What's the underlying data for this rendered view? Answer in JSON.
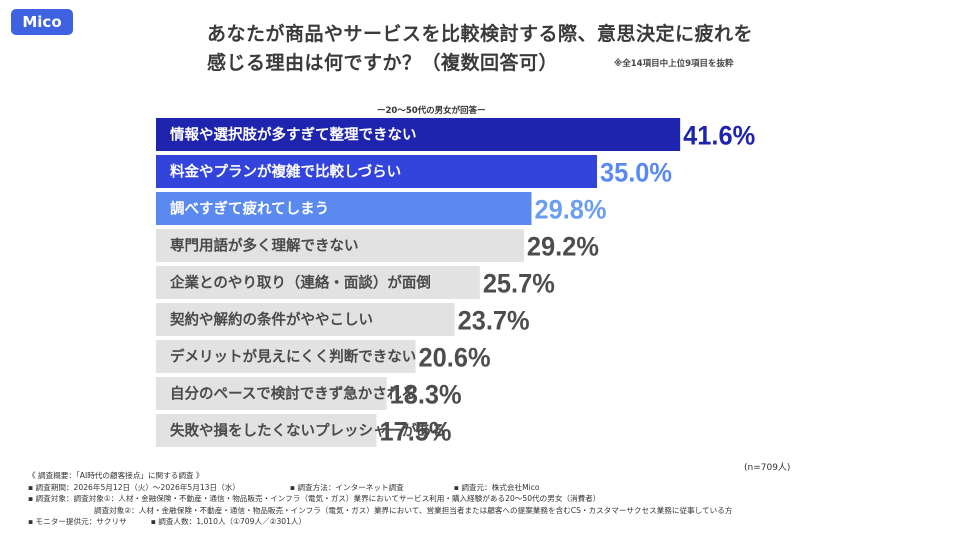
{
  "logo": "Mico",
  "header": {
    "title_line1": "あなたが商品やサービスを比較検討する際、意思決定に疲れを",
    "title_line2": "感じる理由は何ですか？（複数回答可）",
    "note": "※全14項目中上位9項目を抜粋",
    "sublabel": "ー20〜50代の男女が回答ー"
  },
  "chart_data": {
    "type": "bar",
    "orientation": "horizontal",
    "categories": [
      "情報や選択肢が多すぎて整理できない",
      "料金やプランが複雑で比較しづらい",
      "調べすぎて疲れてしまう",
      "専門用語が多く理解できない",
      "企業とのやり取り（連絡・面談）が面倒",
      "契約や解約の条件がややこしい",
      "デメリットが見えにくく判断できない",
      "自分のペースで検討できず急かされる",
      "失敗や損をしたくないプレッシャーがある"
    ],
    "values": [
      41.6,
      35.0,
      29.8,
      29.2,
      25.7,
      23.7,
      20.6,
      18.3,
      17.5
    ],
    "value_labels": [
      "41.6%",
      "35.0%",
      "29.8%",
      "29.2%",
      "25.7%",
      "23.7%",
      "20.6%",
      "18.3%",
      "17.5%"
    ],
    "colors": {
      "rank1": "#1e24ad",
      "rank2": "#3344dd",
      "rank3": "#5a8af0",
      "other": "#e2e2e2",
      "label_rank1": "#1e24ad",
      "label_rank2": "#5a8af0",
      "label_rank3": "#6b9ef2",
      "label_other": "#4d4d4d"
    },
    "n_label": "(n=709人)"
  },
  "footer": {
    "summary": "《 調査概要：「AI時代の顧客接点」に関する調査 》",
    "period": "▪ 調査期間：2026年5月12日（火）〜2026年5月13日（水）",
    "method": "▪ 調査方法：インターネット調査",
    "organizer": "▪ 調査元：株式会社Mico",
    "target1": "▪ 調査対象：調査対象①：人材・金融保険・不動産・通信・物品販売・インフラ（電気・ガス）業界においてサービス利用・購入経験がある20〜50代の男女（消費者）",
    "target2": "調査対象②：人材・金融保険・不動産・通信・物品販売・インフラ（電気・ガス）業界において、営業担当者または顧客への提案業務を含むCS・カスタマーサクセス業務に従事している方",
    "monitor": "▪ モニター提供元：サクリサ",
    "count": "▪ 調査人数：1,010人（①709人／②301人）"
  }
}
